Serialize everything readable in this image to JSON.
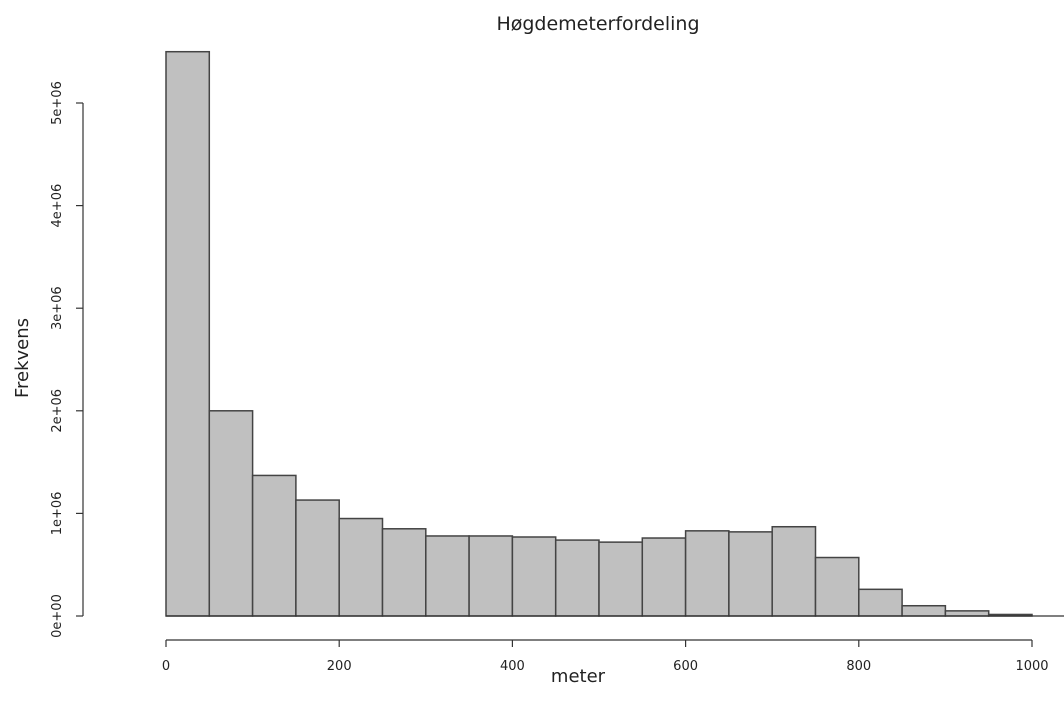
{
  "chart_data": {
    "type": "bar",
    "title": "Høgdemeterfordeling",
    "xlabel": "meter",
    "ylabel": "Frekvens",
    "bin_edges": [
      0,
      50,
      100,
      150,
      200,
      250,
      300,
      350,
      400,
      450,
      500,
      550,
      600,
      650,
      700,
      750,
      800,
      850,
      900,
      950,
      1000
    ],
    "values": [
      5500000,
      2000000,
      1370000,
      1130000,
      950000,
      850000,
      780000,
      780000,
      770000,
      740000,
      720000,
      760000,
      830000,
      820000,
      870000,
      570000,
      260000,
      100000,
      50000,
      15000
    ],
    "xlim": [
      0,
      1000
    ],
    "ylim": [
      0,
      5000000
    ],
    "x_ticks": [
      0,
      200,
      400,
      600,
      800,
      1000
    ],
    "x_tick_labels": [
      "0",
      "200",
      "400",
      "600",
      "800",
      "1000"
    ],
    "y_ticks": [
      0,
      1000000,
      2000000,
      3000000,
      4000000,
      5000000
    ],
    "y_tick_labels": [
      "0e+00",
      "1e+06",
      "2e+06",
      "3e+06",
      "4e+06",
      "5e+06"
    ],
    "bar_color": "#c0c0c0",
    "bar_border_color": "#444444",
    "grid": false
  }
}
